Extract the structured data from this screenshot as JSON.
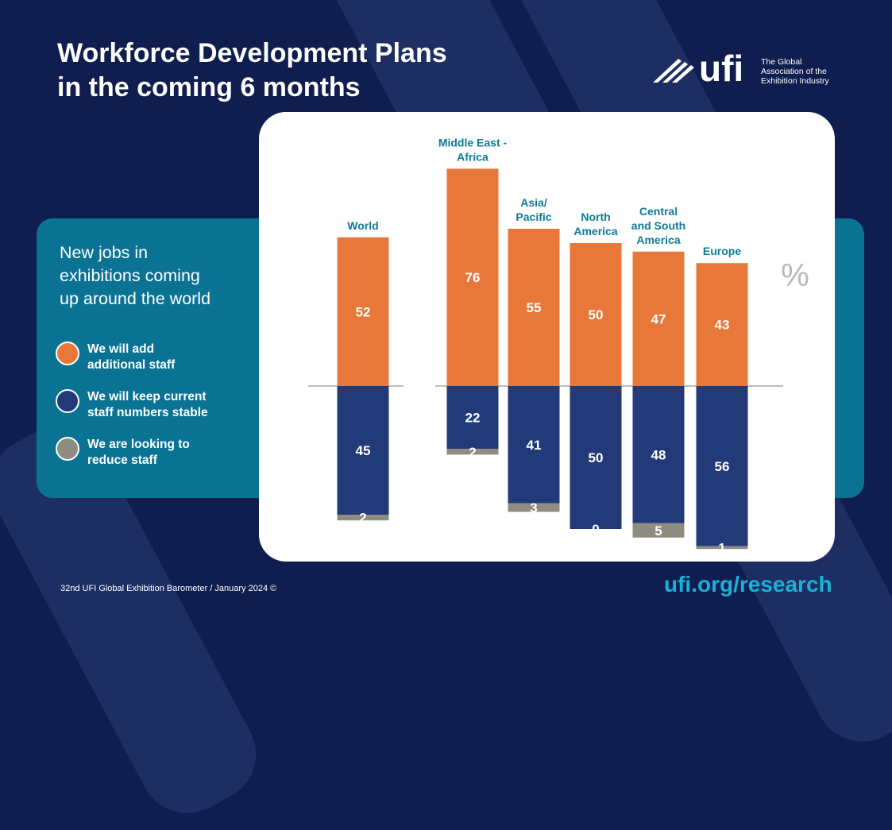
{
  "header": {
    "title_line1": "Workforce Development Plans",
    "title_line2": "in the coming 6 months"
  },
  "logo": {
    "wordmark": "ufi",
    "subtitle_line1": "The Global",
    "subtitle_line2": "Association of the",
    "subtitle_line3": "Exhibition Industry"
  },
  "panel": {
    "heading_line1": "New jobs in",
    "heading_line2": "exhibitions coming",
    "heading_line3": "up around the world"
  },
  "legend": [
    {
      "line1": "We will add",
      "line2": "additional staff",
      "color": "#e8773a"
    },
    {
      "line1": "We will keep current",
      "line2": "staff numbers stable",
      "color": "#233a78"
    },
    {
      "line1": "We are looking to",
      "line2": "reduce staff",
      "color": "#8f8c80"
    }
  ],
  "chart_data": {
    "type": "bar",
    "unit": "%",
    "categories": [
      {
        "lines": [
          "World"
        ]
      },
      {
        "lines": [
          "Middle East -",
          "Africa"
        ]
      },
      {
        "lines": [
          "Asia/",
          "Pacific"
        ]
      },
      {
        "lines": [
          "North",
          "America"
        ]
      },
      {
        "lines": [
          "Central",
          "and South",
          "America"
        ]
      },
      {
        "lines": [
          "Europe"
        ]
      }
    ],
    "series": [
      {
        "name": "We will add additional staff",
        "color": "#e8773a",
        "values": [
          52,
          76,
          55,
          50,
          47,
          43
        ]
      },
      {
        "name": "We will keep current staff numbers stable",
        "color": "#233a78",
        "values": [
          45,
          22,
          41,
          50,
          48,
          56
        ]
      },
      {
        "name": "We are looking to reduce staff",
        "color": "#8f8c80",
        "values": [
          2,
          2,
          3,
          0,
          5,
          1
        ]
      }
    ]
  },
  "footer": {
    "source": "32nd UFI Global Exhibition Barometer / January 2024 ©",
    "url": "ufi.org/research"
  }
}
